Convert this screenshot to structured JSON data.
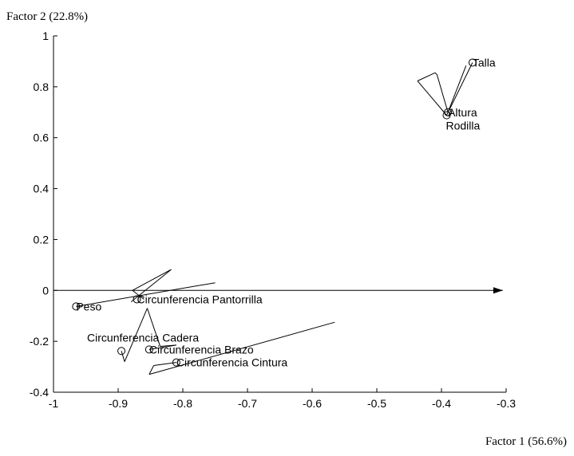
{
  "chart_data": {
    "type": "scatter",
    "xlabel": "Factor 1 (56.6%)",
    "ylabel": "Factor 2 (22.8%)",
    "xlim": [
      -1,
      -0.3
    ],
    "ylim": [
      -0.4,
      1
    ],
    "x_ticks": [
      "-1",
      "-0.9",
      "-0.8",
      "-0.7",
      "-0.6",
      "-0.5",
      "-0.4",
      "-0.3"
    ],
    "y_ticks": [
      "-0.4",
      "-0.2",
      "0",
      "0.2",
      "0.4",
      "0.6",
      "0.8",
      "1"
    ],
    "points": [
      {
        "label": "Talla",
        "x": -0.352,
        "y": 0.895
      },
      {
        "label": "Altura",
        "x": -0.39,
        "y": 0.7
      },
      {
        "label": "Rodilla",
        "x": -0.392,
        "y": 0.688
      },
      {
        "label": "Peso",
        "x": -0.965,
        "y": -0.063
      },
      {
        "label": "Circunferencia Pantorrilla",
        "x": -0.871,
        "y": -0.035
      },
      {
        "label": "Circunferencia Cadera",
        "x": -0.895,
        "y": -0.238
      },
      {
        "label": "Circunferencia Brazo",
        "x": -0.852,
        "y": -0.232
      },
      {
        "label": "Circunferencia Cintura",
        "x": -0.81,
        "y": -0.283
      }
    ],
    "segments": [
      {
        "x1": -1.0,
        "y1": 0.0,
        "x2": -0.305,
        "y2": 0.0
      },
      {
        "x1": -0.352,
        "y1": 0.895,
        "x2": -0.392,
        "y2": 0.688
      },
      {
        "x1": -0.392,
        "y1": 0.688,
        "x2": -0.437,
        "y2": 0.823
      },
      {
        "x1": -0.437,
        "y1": 0.823,
        "x2": -0.41,
        "y2": 0.855
      },
      {
        "x1": -0.41,
        "y1": 0.855,
        "x2": -0.407,
        "y2": 0.848
      },
      {
        "x1": -0.407,
        "y1": 0.848,
        "x2": -0.39,
        "y2": 0.7
      },
      {
        "x1": -0.39,
        "y1": 0.7,
        "x2": -0.362,
        "y2": 0.883
      },
      {
        "x1": -0.965,
        "y1": -0.063,
        "x2": -0.75,
        "y2": 0.03
      },
      {
        "x1": -0.88,
        "y1": -0.045,
        "x2": -0.818,
        "y2": 0.082
      },
      {
        "x1": -0.818,
        "y1": 0.082,
        "x2": -0.878,
        "y2": 0.0
      },
      {
        "x1": -0.878,
        "y1": 0.0,
        "x2": -0.86,
        "y2": -0.035
      },
      {
        "x1": -0.895,
        "y1": -0.238,
        "x2": -0.89,
        "y2": -0.28
      },
      {
        "x1": -0.89,
        "y1": -0.28,
        "x2": -0.855,
        "y2": -0.07
      },
      {
        "x1": -0.855,
        "y1": -0.07,
        "x2": -0.835,
        "y2": -0.22
      },
      {
        "x1": -0.835,
        "y1": -0.22,
        "x2": -0.81,
        "y2": -0.215
      },
      {
        "x1": -0.81,
        "y1": -0.215,
        "x2": -0.852,
        "y2": -0.232
      },
      {
        "x1": -0.852,
        "y1": -0.33,
        "x2": -0.565,
        "y2": -0.125
      },
      {
        "x1": -0.852,
        "y1": -0.33,
        "x2": -0.845,
        "y2": -0.295
      },
      {
        "x1": -0.845,
        "y1": -0.295,
        "x2": -0.81,
        "y2": -0.283
      }
    ],
    "grid": false,
    "legend": "none"
  }
}
